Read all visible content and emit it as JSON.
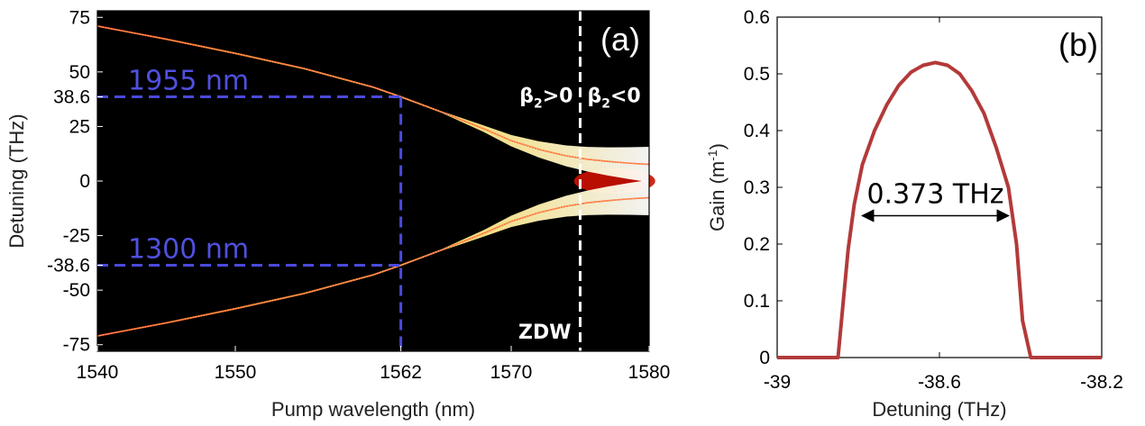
{
  "colors": {
    "background_panel": "#000000",
    "gain_curve": "#b33a3a",
    "guide_lines": "#4a4adb",
    "zdw_line": "#ffffff",
    "heat_high": "#ffffff",
    "heat_mid": "#ffd200",
    "heat_low": "#cc1100"
  },
  "chart_data": [
    {
      "type": "heatmap",
      "panel_tag": "(a)",
      "xlabel": "Pump wavelength (nm)",
      "ylabel": "Detuning (THz)",
      "xlim": [
        1540,
        1580
      ],
      "ylim": [
        -78,
        78
      ],
      "x_ticks": [
        1540,
        1550,
        1562,
        1570,
        1580
      ],
      "y_ticks": [
        75,
        50,
        38.6,
        25,
        0,
        -25,
        -38.6,
        -50,
        -75
      ],
      "y_tick_labels": [
        "75",
        "50",
        "38.6",
        "25",
        "0",
        "-25",
        "-38.6",
        "-50",
        "-75"
      ],
      "x_tick_labels": [
        "1540",
        "1550",
        "1562",
        "1570",
        "1580"
      ],
      "upper_branch": {
        "x": [
          1540,
          1545,
          1550,
          1555,
          1560,
          1562,
          1565,
          1568,
          1570,
          1572,
          1574,
          1575.5,
          1577,
          1578.5,
          1580
        ],
        "y": [
          71,
          65,
          58.5,
          51.5,
          43,
          38.6,
          31.5,
          24,
          18.5,
          14.5,
          11.5,
          10,
          9,
          8.2,
          7.6
        ]
      },
      "lower_branch": {
        "x": [
          1540,
          1545,
          1550,
          1555,
          1560,
          1562,
          1565,
          1568,
          1570,
          1572,
          1574,
          1575.5,
          1577,
          1578.5,
          1580
        ],
        "y": [
          -71,
          -65,
          -58.5,
          -51.5,
          -43,
          -38.6,
          -31.5,
          -24,
          -18.5,
          -14.5,
          -11.5,
          -10,
          -9,
          -8.2,
          -7.6
        ]
      },
      "guides": [
        {
          "label": "1955 nm",
          "detuning": 38.6,
          "wavelength": 1562
        },
        {
          "label": "1300 nm",
          "detuning": -38.6,
          "wavelength": 1562
        }
      ],
      "zdw": {
        "wavelength": 1575,
        "label": "ZDW"
      },
      "regime_labels": {
        "normal": {
          "beta": "β",
          "sub": "2",
          "rel": ">0"
        },
        "anomalous": {
          "beta": "β",
          "sub": "2",
          "rel": "<0"
        }
      }
    },
    {
      "type": "line",
      "panel_tag": "(b)",
      "xlabel": "Detuning (THz)",
      "ylabel_main": "Gain (m",
      "ylabel_sup": "-1",
      "ylabel_end": ")",
      "xlim": [
        -39,
        -38.2
      ],
      "ylim": [
        0,
        0.6
      ],
      "x_ticks": [
        -39,
        -38.6,
        -38.2
      ],
      "x_tick_labels": [
        "-39",
        "-38.6",
        "-38.2"
      ],
      "y_ticks": [
        0,
        0.1,
        0.2,
        0.3,
        0.4,
        0.5,
        0.6
      ],
      "y_tick_labels": [
        "0",
        "0.1",
        "0.2",
        "0.3",
        "0.4",
        "0.5",
        "0.6"
      ],
      "series": [
        {
          "x": [
            -39,
            -38.85,
            -38.825,
            -38.81,
            -38.79,
            -38.76,
            -38.73,
            -38.7,
            -38.67,
            -38.64,
            -38.61,
            -38.58,
            -38.55,
            -38.52,
            -38.49,
            -38.46,
            -38.43,
            -38.41,
            -38.395,
            -38.375,
            -38.2
          ],
          "y": [
            0,
            0,
            0.19,
            0.27,
            0.34,
            0.4,
            0.445,
            0.48,
            0.503,
            0.515,
            0.52,
            0.515,
            0.5,
            0.47,
            0.43,
            0.37,
            0.3,
            0.2,
            0.065,
            0,
            0
          ]
        }
      ],
      "annotation": {
        "text": "0.373 THz",
        "from": -38.79,
        "to": -38.43,
        "gain": 0.25
      }
    }
  ]
}
